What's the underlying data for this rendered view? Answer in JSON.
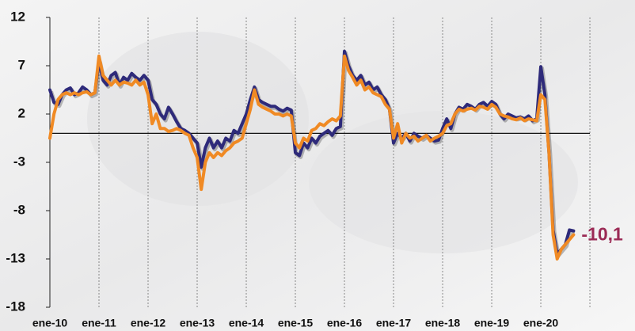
{
  "chart_data": {
    "type": "line",
    "categories": [
      "ene-10",
      null,
      null,
      null,
      null,
      null,
      null,
      null,
      null,
      null,
      null,
      null,
      "ene-11",
      null,
      null,
      null,
      null,
      null,
      null,
      null,
      null,
      null,
      null,
      null,
      "ene-12",
      null,
      null,
      null,
      null,
      null,
      null,
      null,
      null,
      null,
      null,
      null,
      "ene-13",
      null,
      null,
      null,
      null,
      null,
      null,
      null,
      null,
      null,
      null,
      null,
      "ene-14",
      null,
      null,
      null,
      null,
      null,
      null,
      null,
      null,
      null,
      null,
      null,
      "ene-15",
      null,
      null,
      null,
      null,
      null,
      null,
      null,
      null,
      null,
      null,
      null,
      "ene-16",
      null,
      null,
      null,
      null,
      null,
      null,
      null,
      null,
      null,
      null,
      null,
      "ene-17",
      null,
      null,
      null,
      null,
      null,
      null,
      null,
      null,
      null,
      null,
      null,
      "ene-18",
      null,
      null,
      null,
      null,
      null,
      null,
      null,
      null,
      null,
      null,
      null,
      "ene-19",
      null,
      null,
      null,
      null,
      null,
      null,
      null,
      null,
      null,
      null,
      null,
      "ene-20",
      null,
      null,
      null,
      null,
      null,
      null,
      null,
      null,
      null,
      null,
      null,
      null
    ],
    "series": [
      {
        "color": "#2e2a7a",
        "values": [
          4.5,
          3.2,
          3.0,
          4.0,
          4.5,
          4.7,
          4.0,
          4.2,
          4.8,
          4.5,
          4.0,
          4.2,
          7.5,
          5.5,
          5.0,
          6.0,
          6.3,
          5.0,
          5.8,
          5.5,
          6.2,
          5.8,
          5.5,
          6.0,
          5.5,
          3.5,
          3.0,
          2.0,
          1.5,
          2.7,
          2.0,
          1.2,
          0.5,
          0.3,
          0.0,
          -0.5,
          -1.0,
          -3.5,
          -1.5,
          -0.5,
          -1.5,
          -0.8,
          -1.5,
          -0.5,
          -0.8,
          0.3,
          0.0,
          1.0,
          2.0,
          3.5,
          4.8,
          3.5,
          3.2,
          3.0,
          2.8,
          2.8,
          2.5,
          2.3,
          2.6,
          2.4,
          -2.0,
          -2.3,
          -1.0,
          -1.5,
          -0.5,
          -1.0,
          -0.3,
          0.0,
          0.3,
          -0.2,
          0.5,
          0.7,
          8.5,
          7.0,
          6.0,
          5.5,
          6.0,
          5.0,
          5.3,
          4.5,
          4.8,
          4.0,
          3.5,
          2.5,
          -1.0,
          0.0,
          -0.5,
          0.0,
          -0.8,
          0.0,
          -0.3,
          -0.5,
          -0.2,
          -0.5,
          -0.8,
          -0.7,
          0.5,
          1.5,
          0.5,
          2.0,
          2.7,
          2.5,
          3.0,
          2.8,
          2.5,
          3.0,
          3.2,
          2.8,
          3.3,
          3.0,
          2.0,
          1.5,
          2.0,
          1.8,
          1.6,
          1.7,
          1.5,
          1.8,
          1.3,
          1.5,
          6.9,
          4.0,
          -2.0,
          -10.0,
          -12.5,
          -12.0,
          -11.5,
          -10.0,
          -10.1,
          null,
          null,
          null,
          null
        ],
        "value_labels": [
          null,
          null,
          null,
          null,
          null,
          null,
          null,
          null,
          null,
          null,
          null,
          null,
          null,
          null,
          null,
          null,
          null,
          null,
          null,
          null,
          null,
          null,
          null,
          null,
          null,
          null,
          null,
          null,
          null,
          null,
          null,
          null,
          null,
          null,
          null,
          null,
          null,
          null,
          null,
          null,
          null,
          null,
          null,
          null,
          null,
          null,
          null,
          null,
          null,
          null,
          null,
          null,
          null,
          null,
          null,
          null,
          null,
          null,
          null,
          null,
          null,
          null,
          null,
          null,
          null,
          null,
          null,
          null,
          null,
          null,
          null,
          null,
          null,
          null,
          null,
          null,
          null,
          null,
          null,
          null,
          null,
          null,
          null,
          null,
          null,
          null,
          null,
          null,
          null,
          null,
          null,
          null,
          null,
          null,
          null,
          null,
          null,
          null,
          null,
          null,
          null,
          null,
          null,
          null,
          null,
          null,
          null,
          null,
          null,
          null,
          null,
          null,
          null,
          null,
          null,
          null,
          null,
          null,
          null,
          null,
          null,
          null,
          null,
          null,
          null,
          null,
          null,
          null,
          "-10,1",
          null,
          null,
          null,
          null
        ],
        "label_color": "#9b2a55"
      },
      {
        "color": "#f08a24",
        "values": [
          -0.5,
          2.0,
          3.5,
          4.0,
          4.2,
          4.0,
          4.2,
          4.0,
          4.2,
          4.3,
          4.0,
          4.2,
          8.0,
          6.0,
          5.5,
          5.0,
          5.5,
          5.0,
          5.3,
          5.2,
          5.0,
          5.5,
          5.0,
          5.3,
          4.0,
          1.0,
          2.0,
          0.5,
          0.5,
          0.2,
          0.3,
          0.5,
          0.3,
          0.0,
          -0.2,
          -1.5,
          -2.5,
          -5.8,
          -3.0,
          -2.0,
          -2.5,
          -2.0,
          -2.3,
          -1.8,
          -1.5,
          -1.0,
          -0.8,
          -0.5,
          1.0,
          2.5,
          4.5,
          3.0,
          2.7,
          2.5,
          2.3,
          2.0,
          2.0,
          1.8,
          2.0,
          1.8,
          -1.0,
          -1.5,
          -0.5,
          -0.8,
          0.3,
          0.5,
          1.0,
          0.8,
          1.2,
          1.5,
          1.3,
          1.8,
          8.0,
          6.5,
          5.8,
          5.0,
          5.5,
          4.5,
          4.8,
          4.2,
          4.0,
          3.8,
          3.0,
          2.5,
          -0.5,
          1.0,
          -1.0,
          0.0,
          -0.5,
          -0.3,
          -0.8,
          -0.5,
          -0.2,
          -0.8,
          -0.5,
          -0.3,
          0.0,
          0.8,
          1.0,
          2.0,
          2.5,
          2.3,
          2.5,
          2.6,
          2.4,
          2.8,
          2.7,
          2.5,
          3.0,
          2.7,
          2.0,
          1.8,
          1.7,
          1.5,
          1.4,
          1.6,
          1.3,
          1.5,
          1.4,
          1.3,
          4.0,
          3.5,
          -2.0,
          -10.5,
          -13.0,
          -12.0,
          -11.5,
          -11.0,
          -10.5,
          null,
          null,
          null,
          null
        ]
      }
    ],
    "ylim": [
      -18,
      12
    ],
    "yticks": [
      12,
      7,
      2,
      -3,
      -8,
      -13,
      -18
    ],
    "grid": true
  }
}
